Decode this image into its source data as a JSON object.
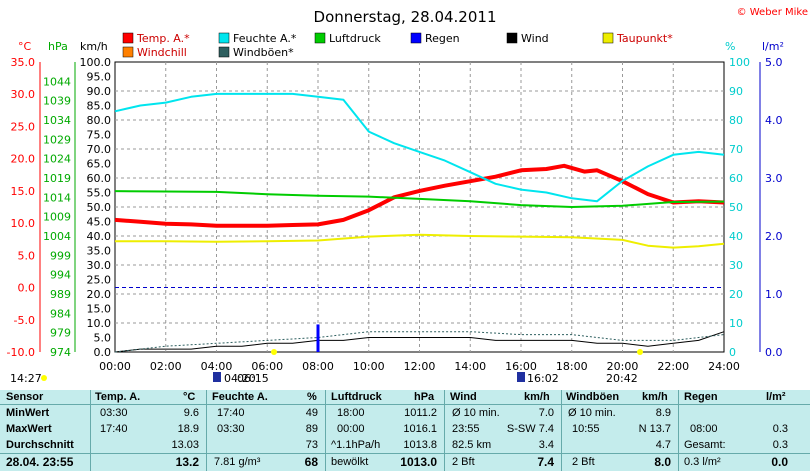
{
  "header": {
    "title": "Donnerstag, 28.04.2011",
    "copyright": "© Weber Mike"
  },
  "colors": {
    "temp": "#ff0000",
    "humidity": "#00e5ee",
    "pressure": "#00cc00",
    "rain": "#0000ff",
    "wind": "#000000",
    "dewpoint": "#eeee00",
    "windchill": "#ff8000",
    "gust": "#2f6060"
  },
  "legend": [
    {
      "key": "temp",
      "label": "Temp. A.*",
      "color": "#ff0000",
      "col": 0,
      "row": 0
    },
    {
      "key": "humidity",
      "label": "Feuchte A.*",
      "color": "#00e5ee",
      "col": 1,
      "row": 0
    },
    {
      "key": "pressure",
      "label": "Luftdruck",
      "color": "#00cc00",
      "col": 2,
      "row": 0
    },
    {
      "key": "rain",
      "label": "Regen",
      "color": "#0000ff",
      "col": 3,
      "row": 0
    },
    {
      "key": "wind",
      "label": "Wind",
      "color": "#000000",
      "col": 4,
      "row": 0
    },
    {
      "key": "dewpoint",
      "label": "Taupunkt*",
      "color": "#eeee00",
      "col": 5,
      "row": 0
    },
    {
      "key": "windchill",
      "label": "Windchill",
      "color": "#ff8000",
      "col": 0,
      "row": 1
    },
    {
      "key": "gust",
      "label": "Windböen*",
      "color": "#2f6060",
      "col": 1,
      "row": 1
    }
  ],
  "chart_data": {
    "type": "line",
    "title": "Donnerstag, 28.04.2011",
    "axes": {
      "temp": {
        "unit": "°C",
        "range": [
          -10,
          35
        ],
        "ticks": [
          "35.0",
          "30.0",
          "25.0",
          "20.0",
          "15.0",
          "10.0",
          "5.0",
          "0.0",
          "-5.0",
          "-10.0"
        ]
      },
      "pressure": {
        "unit": "hPa",
        "range": [
          974,
          1049
        ],
        "ticks": [
          "1044",
          "1039",
          "1034",
          "1029",
          "1024",
          "1019",
          "1014",
          "1009",
          "1004",
          "999",
          "994",
          "989",
          "984",
          "979",
          "974"
        ]
      },
      "wind": {
        "unit": "km/h",
        "range": [
          0,
          100
        ],
        "ticks": [
          "100.0",
          "95.0",
          "90.0",
          "85.0",
          "80.0",
          "75.0",
          "70.0",
          "65.0",
          "60.0",
          "55.0",
          "50.0",
          "45.0",
          "40.0",
          "35.0",
          "30.0",
          "25.0",
          "20.0",
          "15.0",
          "10.0",
          "5.0",
          "0.0"
        ]
      },
      "humidity": {
        "unit": "%",
        "range": [
          0,
          100
        ],
        "ticks": [
          "100",
          "90",
          "80",
          "70",
          "60",
          "50",
          "40",
          "30",
          "20",
          "10",
          "0"
        ]
      },
      "rain": {
        "unit": "l/m²",
        "range": [
          0,
          5
        ],
        "ticks": [
          "5.0",
          "4.0",
          "3.0",
          "2.0",
          "1.0",
          "0.0"
        ]
      },
      "x": {
        "range": [
          0,
          24
        ],
        "ticks": [
          "00:00",
          "02:00",
          "04:00",
          "06:00",
          "08:00",
          "10:00",
          "12:00",
          "14:00",
          "16:00",
          "18:00",
          "20:00",
          "22:00",
          "24:00"
        ]
      }
    },
    "series": [
      {
        "key": "temp",
        "axis": "temp",
        "points": [
          [
            0,
            10.5
          ],
          [
            1,
            10.2
          ],
          [
            2,
            9.9
          ],
          [
            3,
            9.8
          ],
          [
            4,
            9.6
          ],
          [
            5,
            9.6
          ],
          [
            6,
            9.6
          ],
          [
            7,
            9.7
          ],
          [
            8,
            9.8
          ],
          [
            9,
            10.5
          ],
          [
            10,
            12.0
          ],
          [
            11,
            14.0
          ],
          [
            12,
            15.0
          ],
          [
            13,
            15.8
          ],
          [
            14,
            16.5
          ],
          [
            15,
            17.2
          ],
          [
            16,
            18.2
          ],
          [
            17,
            18.4
          ],
          [
            17.7,
            18.9
          ],
          [
            18.5,
            18.0
          ],
          [
            19,
            18.2
          ],
          [
            20,
            16.5
          ],
          [
            21,
            14.5
          ],
          [
            22,
            13.2
          ],
          [
            23,
            13.4
          ],
          [
            24,
            13.2
          ]
        ]
      },
      {
        "key": "humidity",
        "axis": "humidity",
        "points": [
          [
            0,
            83
          ],
          [
            1,
            85
          ],
          [
            2,
            86
          ],
          [
            3,
            88
          ],
          [
            4,
            89
          ],
          [
            5,
            89
          ],
          [
            6,
            89
          ],
          [
            7,
            89
          ],
          [
            8,
            88
          ],
          [
            9,
            87
          ],
          [
            10,
            76
          ],
          [
            11,
            72
          ],
          [
            12,
            69
          ],
          [
            13,
            66
          ],
          [
            14,
            62
          ],
          [
            15,
            58
          ],
          [
            16,
            56
          ],
          [
            17,
            55
          ],
          [
            18,
            53
          ],
          [
            19,
            52
          ],
          [
            20,
            59
          ],
          [
            21,
            64
          ],
          [
            22,
            68
          ],
          [
            23,
            69
          ],
          [
            24,
            68
          ]
        ]
      },
      {
        "key": "pressure",
        "axis": "pressure",
        "points": [
          [
            0,
            1015.6
          ],
          [
            2,
            1015.5
          ],
          [
            4,
            1015.4
          ],
          [
            6,
            1014.8
          ],
          [
            8,
            1014.4
          ],
          [
            10,
            1014.2
          ],
          [
            12,
            1013.6
          ],
          [
            14,
            1013.0
          ],
          [
            16,
            1012.0
          ],
          [
            18,
            1011.5
          ],
          [
            20,
            1011.8
          ],
          [
            22,
            1012.8
          ],
          [
            24,
            1012.9
          ]
        ]
      },
      {
        "key": "dewpoint",
        "axis": "temp",
        "points": [
          [
            0,
            7.2
          ],
          [
            2,
            7.2
          ],
          [
            4,
            7.1
          ],
          [
            6,
            7.2
          ],
          [
            8,
            7.3
          ],
          [
            10,
            7.9
          ],
          [
            12,
            8.2
          ],
          [
            14,
            8.0
          ],
          [
            16,
            7.9
          ],
          [
            18,
            7.8
          ],
          [
            20,
            7.4
          ],
          [
            21,
            6.5
          ],
          [
            22,
            6.2
          ],
          [
            23,
            6.4
          ],
          [
            24,
            6.8
          ]
        ]
      },
      {
        "key": "wind",
        "axis": "wind",
        "points": [
          [
            0,
            0
          ],
          [
            1,
            1
          ],
          [
            2,
            1
          ],
          [
            3,
            1
          ],
          [
            4,
            2
          ],
          [
            5,
            2
          ],
          [
            6,
            3
          ],
          [
            7,
            3
          ],
          [
            8,
            4
          ],
          [
            9,
            4
          ],
          [
            10,
            5
          ],
          [
            11,
            5
          ],
          [
            12,
            5
          ],
          [
            13,
            5
          ],
          [
            14,
            5
          ],
          [
            15,
            4
          ],
          [
            16,
            4
          ],
          [
            17,
            4
          ],
          [
            18,
            4
          ],
          [
            19,
            3
          ],
          [
            20,
            3
          ],
          [
            21,
            2
          ],
          [
            22,
            3
          ],
          [
            23,
            4
          ],
          [
            24,
            7
          ]
        ]
      },
      {
        "key": "gust",
        "axis": "wind",
        "points": [
          [
            0,
            0
          ],
          [
            2,
            2
          ],
          [
            4,
            3
          ],
          [
            6,
            4
          ],
          [
            8,
            5
          ],
          [
            10,
            7
          ],
          [
            12,
            7
          ],
          [
            14,
            7
          ],
          [
            16,
            6
          ],
          [
            18,
            6
          ],
          [
            20,
            4
          ],
          [
            22,
            4
          ],
          [
            24,
            6
          ]
        ]
      }
    ],
    "rain_bars": [
      {
        "x": 8.0,
        "value": 0.3
      }
    ],
    "reference_line": {
      "axis": "temp",
      "value": 0
    }
  },
  "markers": {
    "sunrise": "06:15",
    "sunset": "20:42",
    "moonrise": "04:20",
    "moonset": "16:02",
    "time_left": "14:27"
  },
  "table": {
    "headers": {
      "sensor": "Sensor",
      "temp": "Temp. A.",
      "temp_u": "°C",
      "hum": "Feuchte A.",
      "hum_u": "%",
      "press": "Luftdruck",
      "press_u": "hPa",
      "wind": "Wind",
      "wind_u": "km/h",
      "gust": "Windböen",
      "gust_u": "km/h",
      "rain": "Regen",
      "rain_u": "l/m²"
    },
    "rows": {
      "min": {
        "label": "MinWert",
        "temp_t": "03:30",
        "temp_v": "9.6",
        "hum_t": "17:40",
        "hum_v": "49",
        "press_t": "18:00",
        "press_v": "1011.2",
        "wind_t": "Ø 10 min.",
        "wind_v": "7.0",
        "gust_t": "Ø 10 min.",
        "gust_v": "8.9",
        "rain_t": "",
        "rain_v": ""
      },
      "max": {
        "label": "MaxWert",
        "temp_t": "17:40",
        "temp_v": "18.9",
        "hum_t": "03:30",
        "hum_v": "89",
        "press_t": "00:00",
        "press_v": "1016.1",
        "wind_t": "23:55",
        "wind_dir": "S-SW 7.4",
        "gust_t": "10:55",
        "gust_v": "N 13.7",
        "rain_t": "08:00",
        "rain_v": "0.3"
      },
      "avg": {
        "label": "Durchschnitt",
        "temp_v": "13.03",
        "hum_v": "73",
        "press_t": "^1.1hPa/h",
        "press_v": "1013.8",
        "wind_t": "82.5 km",
        "wind_v": "3.4",
        "gust_v": "4.7",
        "rain_t": "Gesamt:",
        "rain_v": "0.3"
      },
      "cur": {
        "label": "28.04. 23:55",
        "temp_v": "13.2",
        "hum_t": "7.81 g/m³",
        "hum_v": "68",
        "press_t": "bewölkt",
        "press_v": "1013.0",
        "wind_t": "2 Bft",
        "wind_v": "7.4",
        "gust_t": "2 Bft",
        "gust_v": "8.0",
        "rain_t": "0.3 l/m²",
        "rain_v": "0.0"
      }
    }
  }
}
